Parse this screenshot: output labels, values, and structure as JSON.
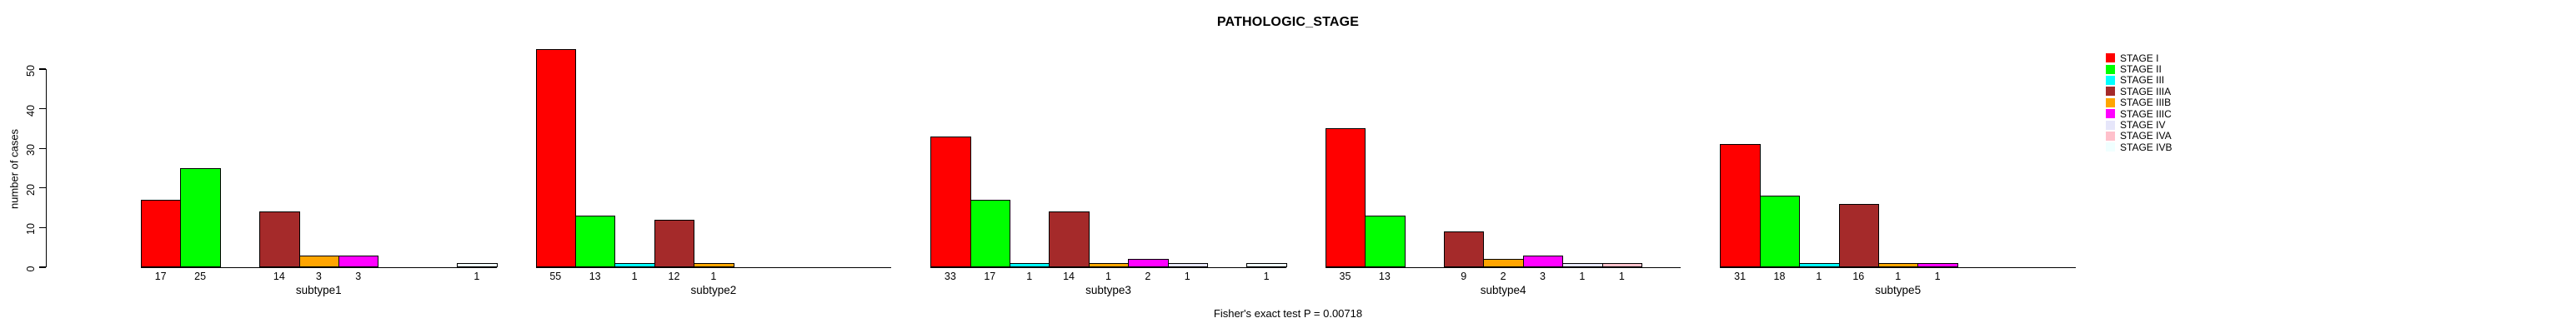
{
  "chart_data": {
    "type": "bar",
    "title": "PATHOLOGIC_STAGE",
    "xlabel": "",
    "ylabel": "number of cases",
    "ylim": [
      0,
      50
    ],
    "yticks": [
      0,
      10,
      20,
      30,
      40,
      50
    ],
    "grid": false,
    "legend_position": "top-right",
    "bar_value_labels_shown": true,
    "categories": [
      "subtype1",
      "subtype2",
      "subtype3",
      "subtype4",
      "subtype5"
    ],
    "series": [
      {
        "name": "STAGE I",
        "color": "#FF0000",
        "values": [
          17,
          55,
          33,
          35,
          31
        ]
      },
      {
        "name": "STAGE II",
        "color": "#00FF00",
        "values": [
          25,
          13,
          17,
          13,
          18
        ]
      },
      {
        "name": "STAGE III",
        "color": "#00FFFF",
        "values": [
          0,
          1,
          1,
          0,
          1
        ]
      },
      {
        "name": "STAGE IIIA",
        "color": "#A52A2A",
        "values": [
          14,
          12,
          14,
          9,
          16
        ]
      },
      {
        "name": "STAGE IIIB",
        "color": "#FFA500",
        "values": [
          3,
          1,
          1,
          2,
          1
        ]
      },
      {
        "name": "STAGE IIIC",
        "color": "#FF00FF",
        "values": [
          3,
          0,
          2,
          3,
          1
        ]
      },
      {
        "name": "STAGE IV",
        "color": "#E6E6FA",
        "values": [
          0,
          0,
          1,
          1,
          0
        ]
      },
      {
        "name": "STAGE IVA",
        "color": "#FFC0CB",
        "values": [
          0,
          0,
          0,
          1,
          0
        ]
      },
      {
        "name": "STAGE IVB",
        "color": "#F0FFFF",
        "values": [
          1,
          0,
          1,
          0,
          0
        ]
      }
    ],
    "annotation": "Fisher's exact test P = 0.00718"
  }
}
